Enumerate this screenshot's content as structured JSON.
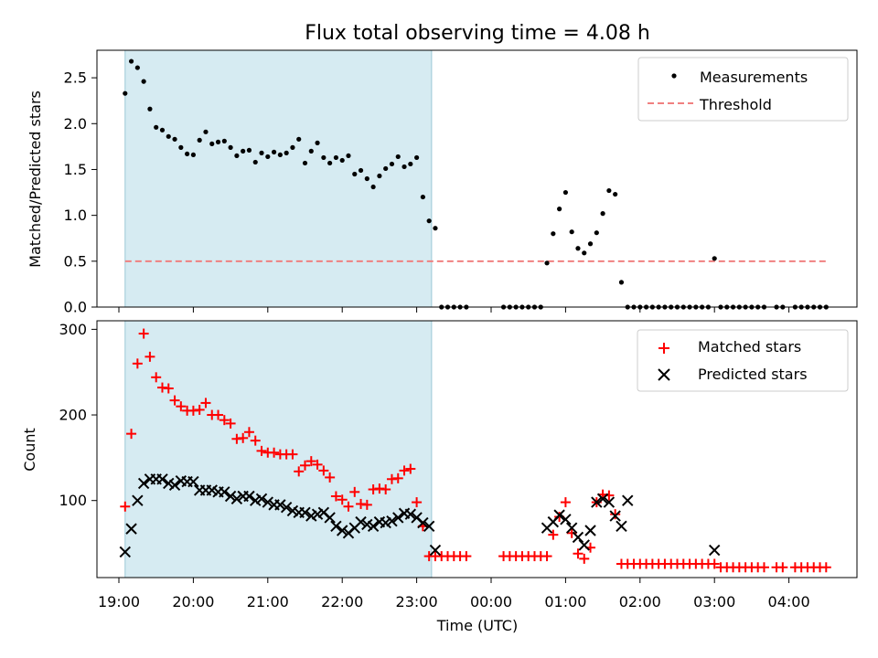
{
  "figure_title": "Flux total observing time = 4.08 h",
  "shaded_span": {
    "x_start": "19:05",
    "x_end": "23:12",
    "color": "#add8e6"
  },
  "chart_data": [
    {
      "type": "scatter",
      "ylabel": "Matched/Predicted stars",
      "ylim": [
        0,
        2.8
      ],
      "yticks": [
        "0.0",
        "0.5",
        "1.0",
        "1.5",
        "2.0",
        "2.5"
      ],
      "xlim": [
        "18:54",
        "05:00"
      ],
      "legend": {
        "placement": "top-right",
        "entries": [
          "Measurements",
          "Threshold"
        ]
      },
      "threshold": {
        "name": "Threshold",
        "value": 0.5,
        "x_start": "19:05",
        "x_end": "04:30",
        "color": "#f08080"
      },
      "series": [
        {
          "name": "Measurements",
          "marker": "dot",
          "color": "#000000",
          "x": [
            "19:05",
            "19:10",
            "19:15",
            "19:20",
            "19:25",
            "19:30",
            "19:35",
            "19:40",
            "19:45",
            "19:50",
            "19:55",
            "20:00",
            "20:05",
            "20:10",
            "20:15",
            "20:20",
            "20:25",
            "20:30",
            "20:35",
            "20:40",
            "20:45",
            "20:50",
            "20:55",
            "21:00",
            "21:05",
            "21:10",
            "21:15",
            "21:20",
            "21:25",
            "21:30",
            "21:35",
            "21:40",
            "21:45",
            "21:50",
            "21:55",
            "22:00",
            "22:05",
            "22:10",
            "22:15",
            "22:20",
            "22:25",
            "22:30",
            "22:35",
            "22:40",
            "22:45",
            "22:50",
            "22:55",
            "23:00",
            "23:05",
            "23:10",
            "23:15",
            "23:20",
            "23:25",
            "23:30",
            "23:35",
            "23:40",
            "00:10",
            "00:15",
            "00:20",
            "00:25",
            "00:30",
            "00:35",
            "00:40",
            "00:45",
            "00:50",
            "00:55",
            "01:00",
            "01:05",
            "01:10",
            "01:15",
            "01:20",
            "01:25",
            "01:30",
            "01:35",
            "01:40",
            "01:45",
            "01:50",
            "01:55",
            "02:00",
            "02:05",
            "02:10",
            "02:15",
            "02:20",
            "02:25",
            "02:30",
            "02:35",
            "02:40",
            "02:45",
            "02:50",
            "02:55",
            "03:00",
            "03:05",
            "03:10",
            "03:15",
            "03:20",
            "03:25",
            "03:30",
            "03:35",
            "03:40",
            "03:50",
            "03:55",
            "04:05",
            "04:10",
            "04:15",
            "04:20",
            "04:25",
            "04:30"
          ],
          "y": [
            2.33,
            2.68,
            2.61,
            2.46,
            2.16,
            1.96,
            1.93,
            1.86,
            1.83,
            1.74,
            1.67,
            1.66,
            1.82,
            1.91,
            1.78,
            1.8,
            1.81,
            1.74,
            1.65,
            1.7,
            1.71,
            1.58,
            1.68,
            1.64,
            1.69,
            1.66,
            1.68,
            1.74,
            1.83,
            1.57,
            1.7,
            1.79,
            1.63,
            1.57,
            1.63,
            1.6,
            1.65,
            1.45,
            1.49,
            1.4,
            1.31,
            1.43,
            1.51,
            1.56,
            1.64,
            1.53,
            1.56,
            1.63,
            1.2,
            0.94,
            0.86,
            0,
            0,
            0,
            0,
            0,
            0,
            0,
            0,
            0,
            0,
            0,
            0,
            0.48,
            0.8,
            1.07,
            1.25,
            0.82,
            0.64,
            0.59,
            0.69,
            0.81,
            1.02,
            1.27,
            1.23,
            0.27,
            0,
            0,
            0,
            0,
            0,
            0,
            0,
            0,
            0,
            0,
            0,
            0,
            0,
            0,
            0.53,
            0,
            0,
            0,
            0,
            0,
            0,
            0,
            0,
            0,
            0,
            0,
            0,
            0,
            0,
            0,
            0
          ]
        }
      ]
    },
    {
      "type": "scatter",
      "xlabel": "Time (UTC)",
      "ylabel": "Count",
      "ylim": [
        10,
        310
      ],
      "yticks": [
        "100",
        "200",
        "300"
      ],
      "xticks": [
        "19:00",
        "20:00",
        "21:00",
        "22:00",
        "23:00",
        "00:00",
        "01:00",
        "02:00",
        "03:00",
        "04:00"
      ],
      "legend": {
        "placement": "top-right",
        "entries": [
          "Matched stars",
          "Predicted stars"
        ]
      },
      "series": [
        {
          "name": "Matched stars",
          "marker": "plus",
          "color": "#ff0000",
          "x": [
            "19:05",
            "19:10",
            "19:15",
            "19:20",
            "19:25",
            "19:30",
            "19:35",
            "19:40",
            "19:45",
            "19:50",
            "19:55",
            "20:00",
            "20:05",
            "20:10",
            "20:15",
            "20:20",
            "20:25",
            "20:30",
            "20:35",
            "20:40",
            "20:45",
            "20:50",
            "20:55",
            "21:00",
            "21:05",
            "21:10",
            "21:15",
            "21:20",
            "21:25",
            "21:30",
            "21:35",
            "21:40",
            "21:45",
            "21:50",
            "21:55",
            "22:00",
            "22:05",
            "22:10",
            "22:15",
            "22:20",
            "22:25",
            "22:30",
            "22:35",
            "22:40",
            "22:45",
            "22:50",
            "22:55",
            "23:00",
            "23:05",
            "23:10",
            "23:15",
            "23:20",
            "23:25",
            "23:30",
            "23:35",
            "23:40",
            "00:10",
            "00:15",
            "00:20",
            "00:25",
            "00:30",
            "00:35",
            "00:40",
            "00:45",
            "00:50",
            "00:55",
            "01:00",
            "01:05",
            "01:10",
            "01:15",
            "01:20",
            "01:25",
            "01:30",
            "01:35",
            "01:40",
            "01:45",
            "01:50",
            "01:55",
            "02:00",
            "02:05",
            "02:10",
            "02:15",
            "02:20",
            "02:25",
            "02:30",
            "02:35",
            "02:40",
            "02:45",
            "02:50",
            "02:55",
            "03:00",
            "03:05",
            "03:10",
            "03:15",
            "03:20",
            "03:25",
            "03:30",
            "03:35",
            "03:40",
            "03:50",
            "03:55",
            "04:05",
            "04:10",
            "04:15",
            "04:20",
            "04:25",
            "04:30"
          ],
          "y": [
            93,
            178,
            260,
            295,
            268,
            244,
            232,
            231,
            217,
            210,
            205,
            205,
            206,
            214,
            200,
            200,
            194,
            190,
            172,
            173,
            180,
            170,
            158,
            156,
            156,
            154,
            154,
            154,
            134,
            141,
            146,
            142,
            135,
            127,
            105,
            101,
            93,
            110,
            96,
            95,
            113,
            114,
            113,
            125,
            126,
            135,
            137,
            98,
            70,
            35,
            35,
            35,
            35,
            35,
            35,
            35,
            35,
            35,
            35,
            35,
            35,
            35,
            35,
            35,
            60,
            81,
            98,
            62,
            38,
            32,
            45,
            98,
            107,
            106,
            84,
            26,
            26,
            26,
            26,
            26,
            26,
            26,
            26,
            26,
            26,
            26,
            26,
            26,
            26,
            26,
            26,
            22,
            22,
            22,
            22,
            22,
            22,
            22,
            22,
            22,
            22,
            22,
            22,
            22,
            22,
            22,
            22
          ]
        },
        {
          "name": "Predicted stars",
          "marker": "x",
          "color": "#000000",
          "x": [
            "19:05",
            "19:10",
            "19:15",
            "19:20",
            "19:25",
            "19:30",
            "19:35",
            "19:40",
            "19:45",
            "19:50",
            "19:55",
            "20:00",
            "20:05",
            "20:10",
            "20:15",
            "20:20",
            "20:25",
            "20:30",
            "20:35",
            "20:40",
            "20:45",
            "20:50",
            "20:55",
            "21:00",
            "21:05",
            "21:10",
            "21:15",
            "21:20",
            "21:25",
            "21:30",
            "21:35",
            "21:40",
            "21:45",
            "21:50",
            "21:55",
            "22:00",
            "22:05",
            "22:10",
            "22:15",
            "22:20",
            "22:25",
            "22:30",
            "22:35",
            "22:40",
            "22:45",
            "22:50",
            "22:55",
            "23:00",
            "23:05",
            "23:10",
            "23:15",
            "00:45",
            "00:50",
            "00:55",
            "01:00",
            "01:05",
            "01:10",
            "01:15",
            "01:20",
            "01:25",
            "01:30",
            "01:35",
            "01:40",
            "01:45",
            "01:50",
            "03:00"
          ],
          "y": [
            40,
            67,
            100,
            120,
            125,
            125,
            125,
            120,
            118,
            123,
            122,
            122,
            112,
            112,
            112,
            110,
            110,
            105,
            102,
            105,
            105,
            100,
            102,
            98,
            95,
            95,
            92,
            88,
            86,
            86,
            82,
            84,
            86,
            80,
            70,
            65,
            62,
            68,
            75,
            72,
            70,
            75,
            74,
            76,
            80,
            85,
            84,
            80,
            74,
            70,
            42,
            68,
            75,
            83,
            78,
            68,
            57,
            48,
            65,
            98,
            102,
            98,
            82,
            70,
            100,
            42
          ]
        }
      ]
    }
  ]
}
